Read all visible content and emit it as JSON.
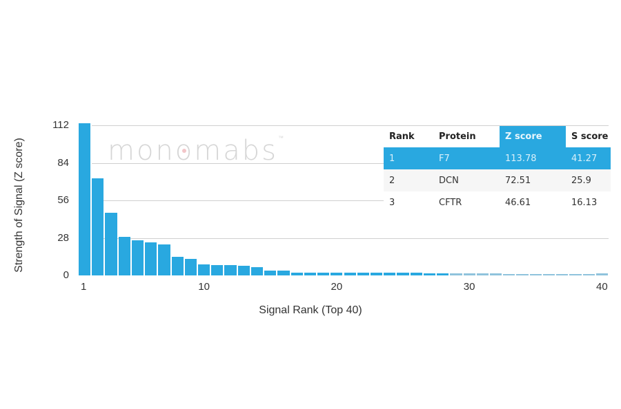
{
  "chart_data": {
    "type": "bar",
    "title": "",
    "xlabel": "Signal Rank (Top 40)",
    "ylabel": "Strength of Signal (Z score)",
    "ylim": [
      0,
      112
    ],
    "yticks": [
      0,
      28,
      56,
      84,
      112
    ],
    "xticks": [
      1,
      10,
      20,
      30,
      40
    ],
    "grid": true,
    "bar_color": "#29a8e0",
    "categories": [
      1,
      2,
      3,
      4,
      5,
      6,
      7,
      8,
      9,
      10,
      11,
      12,
      13,
      14,
      15,
      16,
      17,
      18,
      19,
      20,
      21,
      22,
      23,
      24,
      25,
      26,
      27,
      28,
      29,
      30,
      31,
      32,
      33,
      34,
      35,
      36,
      37,
      38,
      39,
      40
    ],
    "values": [
      113.78,
      72.51,
      46.61,
      29,
      26,
      24.5,
      23,
      14,
      12.5,
      8,
      7.5,
      7.5,
      7,
      6,
      3.5,
      3.5,
      2.3,
      2.2,
      2.2,
      2,
      2,
      2,
      1.8,
      1.8,
      1.8,
      1.8,
      1.7,
      1.5,
      1.5,
      1.3,
      1.3,
      1.3,
      1.2,
      1.2,
      1.2,
      1.2,
      1.2,
      1.1,
      1.1,
      1.5
    ]
  },
  "watermark": {
    "text": "monomabs",
    "tm": "™"
  },
  "table": {
    "headers": [
      "Rank",
      "Protein",
      "Z score",
      "S score"
    ],
    "highlight_column": "Z score",
    "rows": [
      {
        "rank": "1",
        "protein": "F7",
        "z": "113.78",
        "s": "41.27"
      },
      {
        "rank": "2",
        "protein": "DCN",
        "z": "72.51",
        "s": "25.9"
      },
      {
        "rank": "3",
        "protein": "CFTR",
        "z": "46.61",
        "s": "16.13"
      }
    ]
  }
}
